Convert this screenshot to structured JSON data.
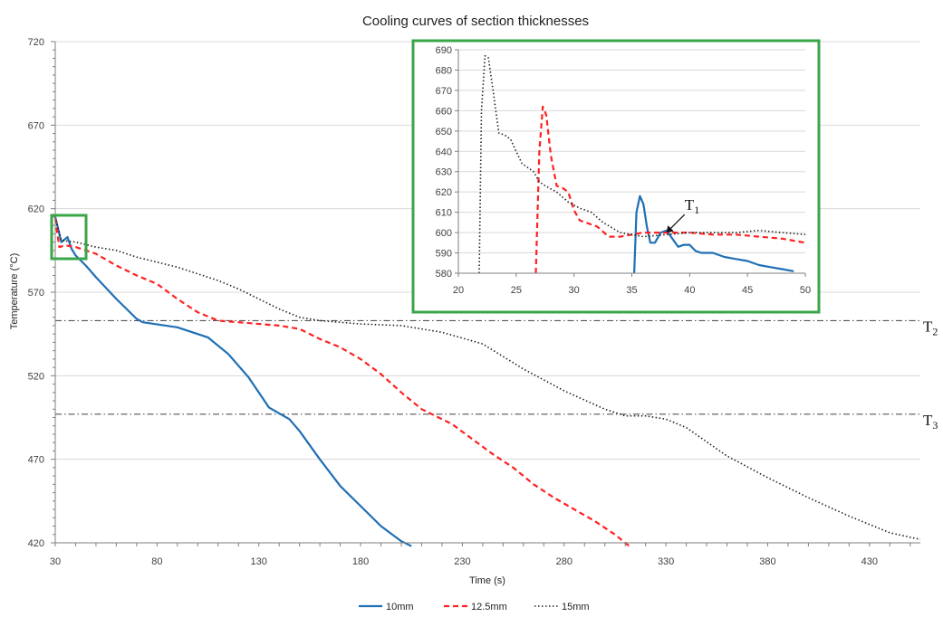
{
  "chart_data": {
    "type": "line",
    "title": "Cooling curves of section thicknesses",
    "xlabel": "Time (s)",
    "ylabel": "Temperature (°C)",
    "xlim": [
      30,
      455
    ],
    "ylim": [
      420,
      720
    ],
    "xticks": [
      30,
      80,
      130,
      180,
      230,
      280,
      330,
      380,
      430
    ],
    "yticks": [
      420,
      470,
      520,
      570,
      620,
      670,
      720
    ],
    "grid": true,
    "legend_position": "bottom",
    "series": [
      {
        "name": "10mm",
        "color": "#1f6fb4",
        "dash": "solid",
        "x": [
          30,
          33,
          36,
          38,
          40,
          45,
          50,
          60,
          70,
          73,
          90,
          105,
          115,
          125,
          135,
          145,
          150,
          160,
          170,
          180,
          190,
          200,
          205
        ],
        "y": [
          615,
          600,
          603,
          596,
          592,
          586,
          579,
          566,
          554,
          552,
          549,
          543,
          533,
          519,
          501,
          494,
          487,
          470,
          454,
          442,
          430,
          421,
          418
        ]
      },
      {
        "name": "12.5mm",
        "color": "#ff2020",
        "dash": "dashed",
        "x": [
          30,
          32,
          35,
          40,
          50,
          60,
          70,
          80,
          90,
          100,
          110,
          120,
          140,
          150,
          160,
          170,
          180,
          190,
          200,
          210,
          215,
          225,
          235,
          245,
          255,
          265,
          275,
          285,
          295,
          305,
          312
        ],
        "y": [
          614,
          597,
          598,
          597,
          593,
          586,
          580,
          575,
          566,
          558,
          553,
          552,
          550,
          548,
          542,
          537,
          530,
          521,
          510,
          500,
          497,
          491,
          482,
          473,
          465,
          455,
          447,
          440,
          433,
          425,
          418
        ]
      },
      {
        "name": "15mm",
        "color": "#222222",
        "dash": "dotted",
        "x": [
          30,
          33,
          40,
          50,
          60,
          70,
          80,
          90,
          100,
          110,
          120,
          130,
          140,
          150,
          160,
          180,
          200,
          220,
          240,
          260,
          280,
          300,
          310,
          320,
          330,
          340,
          360,
          380,
          400,
          420,
          440,
          455
        ],
        "y": [
          615,
          601,
          600,
          597,
          595,
          591,
          588,
          585,
          581,
          577,
          572,
          566,
          560,
          555,
          553,
          551,
          550,
          546,
          539,
          524,
          511,
          500,
          496,
          496,
          494,
          489,
          472,
          459,
          447,
          436,
          426,
          422
        ]
      }
    ],
    "reference_lines": [
      {
        "label": "T",
        "subscript": "2",
        "y": 553
      },
      {
        "label": "T",
        "subscript": "3",
        "y": 497
      }
    ],
    "inset": {
      "xlim": [
        20,
        50
      ],
      "ylim": [
        580,
        690
      ],
      "xticks": [
        20,
        25,
        30,
        35,
        40,
        45,
        50
      ],
      "yticks": [
        580,
        590,
        600,
        610,
        620,
        630,
        640,
        650,
        660,
        670,
        680,
        690
      ],
      "grid": true,
      "annotation": {
        "label": "T",
        "subscript": "1",
        "x": 38,
        "y": 600
      },
      "series": [
        {
          "name": "10mm",
          "color": "#1f6fb4",
          "dash": "solid",
          "x": [
            35.2,
            35.4,
            35.7,
            36.0,
            36.3,
            36.6,
            37.0,
            37.5,
            38.0,
            38.5,
            39.0,
            39.5,
            40.0,
            40.5,
            41.0,
            42.0,
            43.0,
            44.0,
            45.0,
            46.0,
            47.0,
            48.0,
            49.0
          ],
          "y": [
            580,
            610,
            618,
            614,
            603,
            595,
            595,
            600,
            601,
            597,
            593,
            594,
            594,
            591,
            590,
            590,
            588,
            587,
            586,
            584,
            583,
            582,
            581
          ]
        },
        {
          "name": "12.5mm",
          "color": "#ff2020",
          "dash": "dashed",
          "x": [
            26.7,
            27.0,
            27.3,
            27.6,
            28.0,
            28.5,
            29.0,
            29.5,
            30.0,
            30.5,
            31.0,
            32.0,
            33.0,
            34.0,
            35.0,
            36.0,
            38.0,
            40.0,
            42.0,
            44.0,
            46.0,
            48.0,
            50.0
          ],
          "y": [
            580,
            640,
            662,
            658,
            638,
            623,
            622,
            620,
            611,
            606,
            605,
            603,
            598,
            598,
            599,
            600,
            600,
            600,
            599,
            599,
            598,
            597,
            595
          ]
        },
        {
          "name": "15mm",
          "color": "#222222",
          "dash": "dotted",
          "x": [
            21.8,
            22.0,
            22.3,
            22.6,
            23.0,
            23.5,
            24.0,
            24.5,
            25.0,
            25.5,
            26.0,
            26.5,
            27.0,
            27.5,
            28.5,
            29.5,
            30.5,
            31.5,
            32.5,
            34.0,
            36.0,
            38.0,
            40.0,
            42.0,
            44.0,
            46.0,
            48.0,
            50.0
          ],
          "y": [
            580,
            660,
            687,
            686,
            670,
            649,
            648,
            646,
            640,
            634,
            632,
            630,
            625,
            623,
            620,
            615,
            612,
            610,
            605,
            600,
            598,
            599,
            600,
            600,
            600,
            601,
            600,
            599
          ]
        }
      ]
    }
  }
}
